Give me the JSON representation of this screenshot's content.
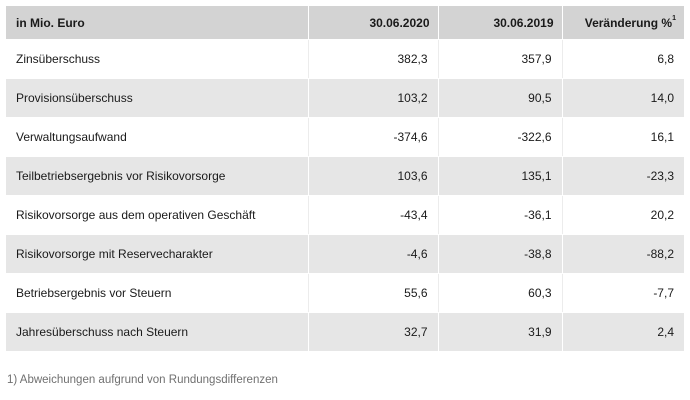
{
  "table": {
    "header": {
      "label": "in Mio. Euro",
      "col_2020": "30.06.2020",
      "col_2019": "30.06.2019",
      "col_change": "Veränderung %",
      "col_change_sup": "1"
    },
    "rows": [
      {
        "label": "Zinsüberschuss",
        "v2020": "382,3",
        "v2019": "357,9",
        "change": "6,8"
      },
      {
        "label": "Provisionsüberschuss",
        "v2020": "103,2",
        "v2019": "90,5",
        "change": "14,0"
      },
      {
        "label": "Verwaltungsaufwand",
        "v2020": "-374,6",
        "v2019": "-322,6",
        "change": "16,1"
      },
      {
        "label": "Teilbetriebsergebnis vor Risikovorsorge",
        "v2020": "103,6",
        "v2019": "135,1",
        "change": "-23,3"
      },
      {
        "label": "Risikovorsorge aus dem operativen Geschäft",
        "v2020": "-43,4",
        "v2019": "-36,1",
        "change": "20,2"
      },
      {
        "label": "Risikovorsorge mit Reservecharakter",
        "v2020": "-4,6",
        "v2019": "-38,8",
        "change": "-88,2"
      },
      {
        "label": "Betriebsergebnis vor Steuern",
        "v2020": "55,6",
        "v2019": "60,3",
        "change": "-7,7"
      },
      {
        "label": "Jahresüberschuss nach Steuern",
        "v2020": "32,7",
        "v2019": "31,9",
        "change": "2,4"
      }
    ]
  },
  "footnote": "1) Abweichungen aufgrund von Rundungsdifferenzen"
}
